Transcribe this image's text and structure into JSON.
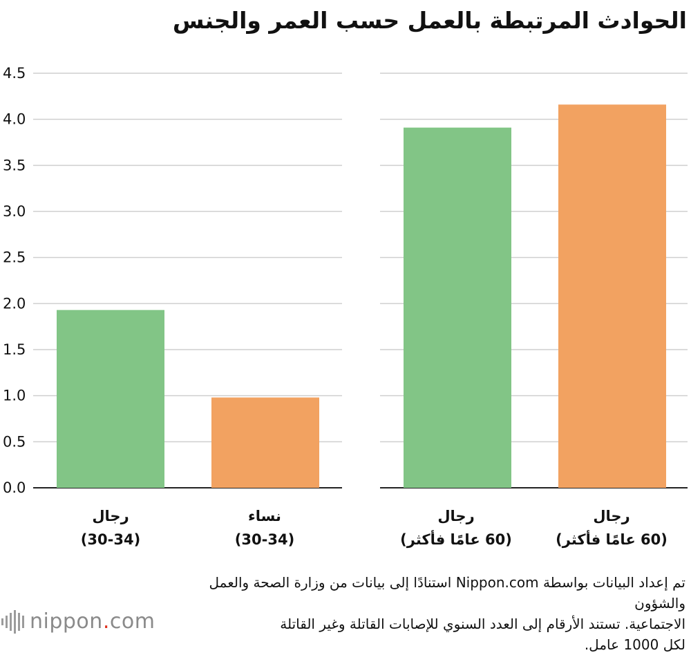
{
  "chart_data": {
    "type": "bar",
    "title": "الحوادث المرتبطة بالعمل حسب العمر والجنس",
    "groups": [
      {
        "bars": [
          {
            "label_line1": "رجال",
            "label_line2": "(30-34)",
            "value": 1.93,
            "color": "#82c586"
          },
          {
            "label_line1": "نساء",
            "label_line2": "(30-34)",
            "value": 0.98,
            "color": "#f2a261"
          }
        ]
      },
      {
        "bars": [
          {
            "label_line1": "رجال",
            "label_line2": "(60 عامًا فأكثر)",
            "value": 3.91,
            "color": "#82c586"
          },
          {
            "label_line1": "رجال",
            "label_line2": "(60 عامًا فأكثر)",
            "value": 4.16,
            "color": "#f2a261"
          }
        ]
      }
    ],
    "yticks": [
      "0.0",
      "0.5",
      "1.0",
      "1.5",
      "2.0",
      "2.5",
      "3.0",
      "3.5",
      "4.0",
      "4.5"
    ],
    "ylim": [
      0,
      4.5
    ],
    "grid": true
  },
  "source": {
    "line1": "تم إعداد البيانات بواسطة Nippon.com استنادًا إلى بيانات من وزارة الصحة والعمل والشؤون",
    "line2": "الاجتماعية. تستند الأرقام إلى العدد السنوي للإصابات القاتلة وغير القاتلة",
    "line3": "لكل 1000 عامل."
  },
  "logo": {
    "name": "nippon",
    "dot": ".",
    "suffix": "com"
  }
}
